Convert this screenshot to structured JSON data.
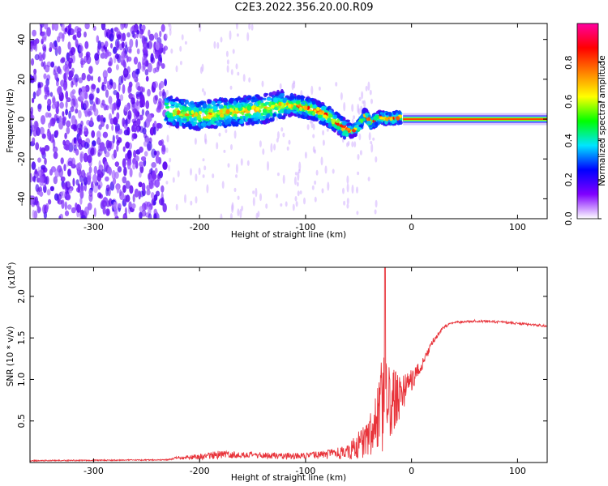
{
  "title": "C2E3.2022.356.20.00.R09",
  "chart_data": [
    {
      "type": "heatmap",
      "xlabel": "Height of straight line (km)",
      "ylabel": "Frequency (Hz)",
      "xlim": [
        -360,
        128
      ],
      "ylim": [
        -50,
        48
      ],
      "xticks": [
        -300,
        -200,
        -100,
        0,
        100
      ],
      "yticks": [
        -40,
        -20,
        0,
        20,
        40
      ],
      "colorbar": {
        "label": "Normalized spectral amplitude",
        "range": [
          0,
          1
        ],
        "ticks": [
          "0.0",
          "0.2",
          "0.4",
          "0.6",
          "0.8"
        ],
        "colors": [
          "#ffffff",
          "#8000ff",
          "#0000ff",
          "#00e5ff",
          "#00ff00",
          "#ffff00",
          "#ff8000",
          "#ff0000",
          "#ff00a0"
        ]
      },
      "ridge": {
        "x": [
          -232,
          -220,
          -200,
          -180,
          -160,
          -140,
          -125,
          -110,
          -95,
          -80,
          -70,
          -62,
          -56,
          -50,
          -44,
          -38,
          -30,
          -20,
          -10,
          0,
          20,
          60,
          128
        ],
        "y": [
          5,
          3,
          2,
          3,
          4,
          5,
          7,
          7,
          5,
          2,
          -2,
          -5,
          -6,
          -4,
          2,
          -2,
          1,
          0,
          1,
          0,
          0,
          0,
          0
        ]
      },
      "noise_region_x": [
        -360,
        -232
      ]
    },
    {
      "type": "line",
      "xlabel": "Height of straight line (km)",
      "ylabel": "SNR (10 * v/v)",
      "y_multiplier": "(x10^4)",
      "y_multiplier_base": "(x10",
      "y_multiplier_exp": "4",
      "y_multiplier_close": ")",
      "xlim": [
        -360,
        128
      ],
      "ylim": [
        0,
        2.35
      ],
      "xticks": [
        -300,
        -200,
        -100,
        0,
        100
      ],
      "yticks": [
        0.5,
        1.0,
        1.5,
        2.0
      ],
      "ytick_labels": [
        "0.5",
        "1.0",
        "1.5",
        "2.0"
      ],
      "color": "#e8333a",
      "envelope": {
        "x": [
          -360,
          -230,
          -220,
          -200,
          -180,
          -160,
          -120,
          -100,
          -80,
          -60,
          -50,
          -40,
          -35,
          -30,
          -28,
          -25,
          -20,
          -15,
          -10,
          0,
          10,
          20,
          30,
          40,
          60,
          80,
          100,
          128
        ],
        "base": [
          0.02,
          0.03,
          0.05,
          0.06,
          0.08,
          0.08,
          0.07,
          0.07,
          0.08,
          0.1,
          0.15,
          0.25,
          0.35,
          0.45,
          0.5,
          0.55,
          0.6,
          0.65,
          0.75,
          0.95,
          1.15,
          1.45,
          1.62,
          1.68,
          1.7,
          1.69,
          1.67,
          1.64
        ],
        "amp": [
          0.01,
          0.01,
          0.03,
          0.05,
          0.07,
          0.05,
          0.06,
          0.05,
          0.08,
          0.12,
          0.25,
          0.35,
          0.45,
          0.6,
          0.9,
          0.8,
          0.6,
          0.5,
          0.35,
          0.2,
          0.1,
          0.05,
          0.03,
          0.02,
          0.02,
          0.02,
          0.02,
          0.02
        ]
      },
      "peak": {
        "x": -25,
        "y": 2.35
      }
    }
  ]
}
